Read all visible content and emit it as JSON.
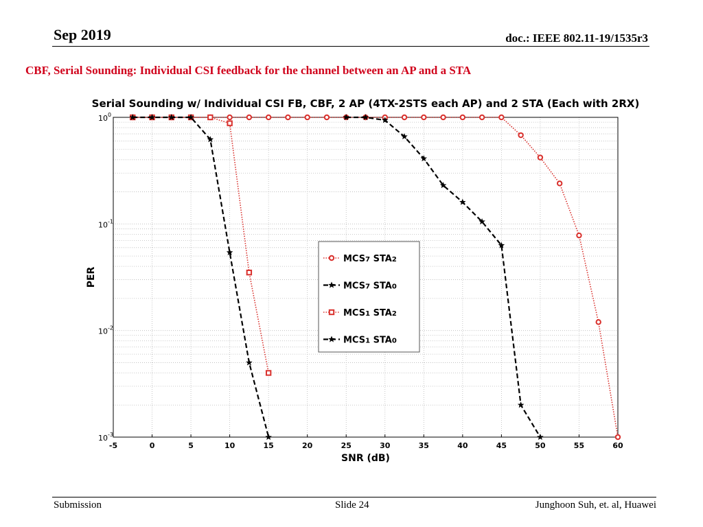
{
  "header": {
    "date": "Sep 2019",
    "doc": "doc.: IEEE 802.11-19/1535r3"
  },
  "slide_title": "CBF, Serial Sounding: Individual CSI feedback for the channel between an AP and a STA",
  "footer": {
    "left": "Submission",
    "center": "Slide 24",
    "right": "Junghoon Suh, et. al, Huawei"
  },
  "chart_data": {
    "type": "line",
    "title": "Serial Sounding w/ Individual CSI FB, CBF, 2 AP (4TX-2STS each AP) and 2 STA (Each with 2RX)",
    "xlabel": "SNR (dB)",
    "ylabel": "PER",
    "xlim": [
      -5,
      60
    ],
    "ylim": [
      0.001,
      1
    ],
    "yscale": "log",
    "grid": true,
    "legend_position": "center",
    "xticks": [
      -5,
      0,
      5,
      10,
      15,
      20,
      25,
      30,
      35,
      40,
      45,
      50,
      55,
      60
    ],
    "yticks": [
      {
        "value": 1,
        "base": "10",
        "exp": "0"
      },
      {
        "value": 0.1,
        "base": "10",
        "exp": "-1"
      },
      {
        "value": 0.01,
        "base": "10",
        "exp": "-2"
      },
      {
        "value": 0.001,
        "base": "10",
        "exp": "-3"
      }
    ],
    "series": [
      {
        "name": "MCS7 STA2",
        "name_base": "MCS",
        "name_sub": "7",
        "name_mid": " STA",
        "name_sub2": "2",
        "color": "#d9302c",
        "dash": "dotted",
        "marker": "circle",
        "x": [
          -2.5,
          0,
          2.5,
          5,
          7.5,
          10,
          12.5,
          15,
          17.5,
          20,
          22.5,
          25,
          27.5,
          30,
          32.5,
          35,
          37.5,
          40,
          42.5,
          45,
          47.5,
          50,
          52.5,
          55,
          57.5,
          60
        ],
        "y": [
          1,
          1,
          1,
          1,
          1,
          1,
          1,
          1,
          1,
          1,
          1,
          1,
          1,
          1,
          1,
          1,
          1,
          1,
          1,
          1,
          0.68,
          0.42,
          0.24,
          0.078,
          0.012,
          0.001
        ]
      },
      {
        "name": "MCS7 STA0",
        "name_base": "MCS",
        "name_sub": "7",
        "name_mid": " STA",
        "name_sub2": "0",
        "color": "#000000",
        "dash": "dashed",
        "marker": "star",
        "x": [
          25,
          27.5,
          30,
          32.5,
          35,
          37.5,
          40,
          42.5,
          45,
          47.5,
          50
        ],
        "y": [
          1,
          1,
          0.94,
          0.66,
          0.41,
          0.23,
          0.16,
          0.105,
          0.063,
          0.002,
          0.001
        ]
      },
      {
        "name": "MCS1 STA2",
        "name_base": "MCS",
        "name_sub": "1",
        "name_mid": " STA",
        "name_sub2": "2",
        "color": "#d9302c",
        "dash": "dotted",
        "marker": "square",
        "x": [
          -2.5,
          0,
          2.5,
          5,
          7.5,
          10,
          12.5,
          15
        ],
        "y": [
          1,
          1,
          1,
          1,
          1,
          0.88,
          0.035,
          0.004
        ]
      },
      {
        "name": "MCS1 STA0",
        "name_base": "MCS",
        "name_sub": "1",
        "name_mid": " STA",
        "name_sub2": "0",
        "color": "#000000",
        "dash": "dashed",
        "marker": "star",
        "x": [
          -2.5,
          0,
          2.5,
          5,
          7.5,
          10,
          12.5,
          15
        ],
        "y": [
          1,
          1,
          1,
          1,
          0.62,
          0.054,
          0.005,
          0.001
        ]
      }
    ]
  }
}
